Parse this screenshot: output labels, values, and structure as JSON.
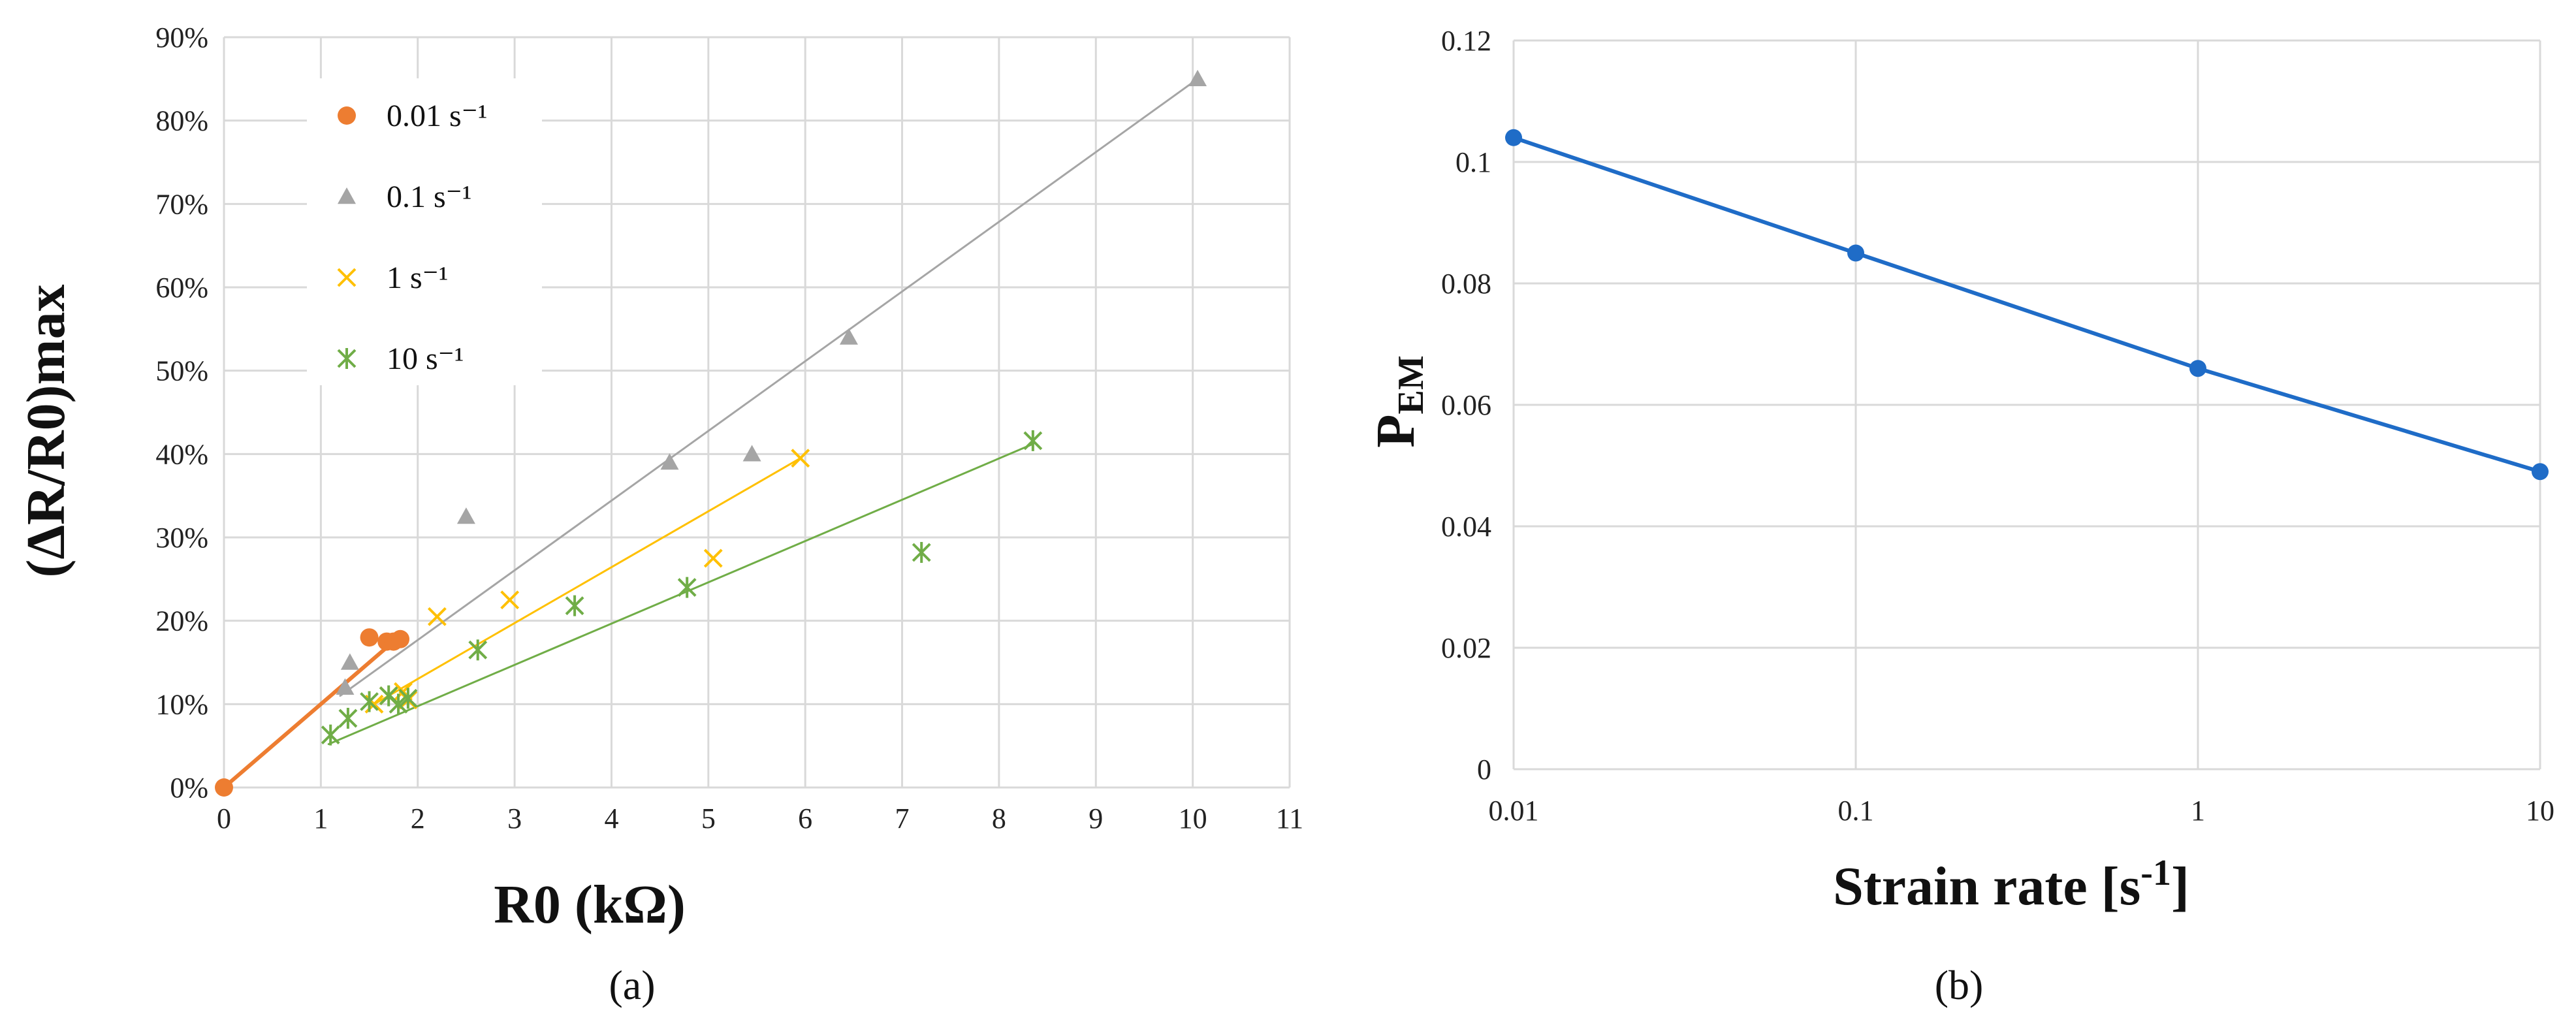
{
  "chart_data": [
    {
      "type": "scatter",
      "panel_label": "(a)",
      "xlabel": "R0 (kΩ)",
      "ylabel": "(ΔR/R0)max",
      "xlim": [
        0,
        11
      ],
      "ylim": [
        0,
        0.9
      ],
      "x_ticks": [
        "0",
        "1",
        "2",
        "3",
        "4",
        "5",
        "6",
        "7",
        "8",
        "9",
        "10",
        "11"
      ],
      "y_ticks": [
        "0%",
        "10%",
        "20%",
        "30%",
        "40%",
        "50%",
        "60%",
        "70%",
        "80%",
        "90%"
      ],
      "grid": true,
      "legend_position": "top-left",
      "series": [
        {
          "name": "0.01 s⁻¹",
          "marker": "circle",
          "color": "#ED7D31",
          "points": [
            [
              0,
              0
            ],
            [
              1.5,
              0.18
            ],
            [
              1.68,
              0.175
            ],
            [
              1.75,
              0.175
            ],
            [
              1.82,
              0.178
            ]
          ],
          "trendline": [
            [
              0,
              0
            ],
            [
              1.75,
              0.175
            ]
          ]
        },
        {
          "name": "0.1 s⁻¹",
          "marker": "triangle",
          "color": "#A5A5A5",
          "points": [
            [
              1.25,
              0.12
            ],
            [
              1.3,
              0.15
            ],
            [
              2.5,
              0.325
            ],
            [
              4.6,
              0.39
            ],
            [
              5.45,
              0.4
            ],
            [
              6.45,
              0.54
            ],
            [
              10.05,
              0.85
            ]
          ],
          "trendline": [
            [
              1.2,
              0.11
            ],
            [
              10.05,
              0.85
            ]
          ]
        },
        {
          "name": "1 s⁻¹",
          "marker": "x",
          "color": "#FFC000",
          "points": [
            [
              1.55,
              0.1
            ],
            [
              1.7,
              0.11
            ],
            [
              1.85,
              0.115
            ],
            [
              1.9,
              0.105
            ],
            [
              2.2,
              0.205
            ],
            [
              2.95,
              0.225
            ],
            [
              5.05,
              0.275
            ],
            [
              5.95,
              0.395
            ]
          ],
          "trendline": [
            [
              1.55,
              0.1
            ],
            [
              5.95,
              0.395
            ]
          ]
        },
        {
          "name": "10 s⁻¹",
          "marker": "asterisk",
          "color": "#70AD47",
          "points": [
            [
              1.1,
              0.063
            ],
            [
              1.28,
              0.083
            ],
            [
              1.5,
              0.103
            ],
            [
              1.7,
              0.11
            ],
            [
              1.8,
              0.1
            ],
            [
              1.9,
              0.107
            ],
            [
              2.62,
              0.165
            ],
            [
              3.62,
              0.218
            ],
            [
              4.78,
              0.24
            ],
            [
              7.2,
              0.282
            ],
            [
              8.35,
              0.416
            ]
          ],
          "trendline": [
            [
              1.08,
              0.052
            ],
            [
              8.35,
              0.412
            ]
          ]
        }
      ]
    },
    {
      "type": "line",
      "panel_label": "(b)",
      "xlabel_main": "Strain rate [s",
      "xlabel_sup": "-1",
      "xlabel_end": "]",
      "ylabel_main": "P",
      "ylabel_sub": "EM",
      "x_scale": "log",
      "xlim": [
        0.01,
        10
      ],
      "ylim": [
        0,
        0.12
      ],
      "x_ticks": [
        "0.01",
        "0.1",
        "1",
        "10"
      ],
      "y_ticks": [
        "0",
        "0.02",
        "0.04",
        "0.06",
        "0.08",
        "0.1",
        "0.12"
      ],
      "grid": true,
      "color": "#1F6CC7",
      "x": [
        0.01,
        0.1,
        1,
        10
      ],
      "y": [
        0.104,
        0.085,
        0.066,
        0.049
      ]
    }
  ]
}
